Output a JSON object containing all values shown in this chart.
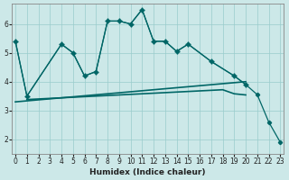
{
  "xlabel": "Humidex (Indice chaleur)",
  "bg_color": "#cce8e8",
  "line_color": "#006666",
  "grid_color": "#99cccc",
  "x_ticks": [
    0,
    1,
    2,
    3,
    4,
    5,
    6,
    7,
    8,
    9,
    10,
    11,
    12,
    13,
    14,
    15,
    16,
    17,
    18,
    19,
    20,
    21,
    22,
    23
  ],
  "y_ticks": [
    2,
    3,
    4,
    5,
    6
  ],
  "ylim": [
    1.5,
    6.7
  ],
  "xlim": [
    -0.3,
    23.3
  ],
  "line1_x": [
    0,
    1,
    4,
    5,
    6,
    7,
    8,
    9,
    10,
    11,
    12,
    13,
    14,
    15,
    17,
    19,
    20,
    21,
    22,
    23
  ],
  "line1_y": [
    5.4,
    3.5,
    5.3,
    5.0,
    4.2,
    4.35,
    6.1,
    6.1,
    6.0,
    6.5,
    5.4,
    5.4,
    5.05,
    5.3,
    4.7,
    4.2,
    3.9,
    3.55,
    2.6,
    1.9
  ],
  "line2_x": [
    0,
    1,
    4,
    5,
    6,
    7,
    8,
    9,
    10,
    11,
    12,
    13,
    14,
    15,
    17,
    19,
    20
  ],
  "line2_y": [
    5.4,
    3.5,
    5.3,
    5.0,
    4.2,
    4.35,
    6.1,
    6.1,
    6.0,
    6.5,
    5.4,
    5.4,
    5.05,
    5.3,
    4.7,
    4.2,
    3.9
  ],
  "line3_x": [
    1,
    2,
    3,
    4,
    5,
    6,
    7,
    8,
    9,
    10,
    11,
    12,
    13,
    14,
    15,
    16,
    17,
    18,
    19,
    20
  ],
  "line3_y": [
    3.38,
    3.4,
    3.42,
    3.44,
    3.46,
    3.48,
    3.5,
    3.52,
    3.54,
    3.56,
    3.58,
    3.6,
    3.62,
    3.64,
    3.66,
    3.68,
    3.7,
    3.72,
    3.58,
    3.54
  ],
  "line4_x": [
    0,
    20
  ],
  "line4_y": [
    3.3,
    4.0
  ]
}
